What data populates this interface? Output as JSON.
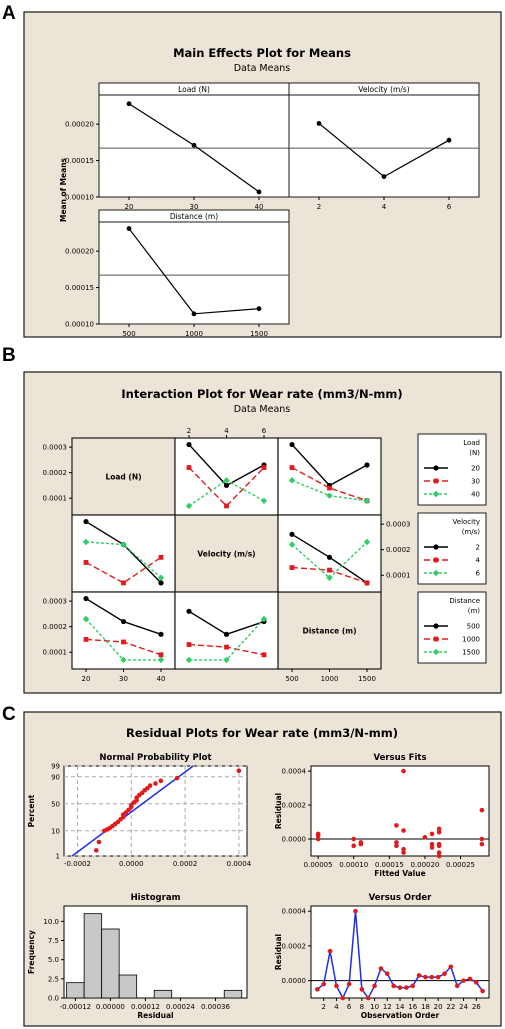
{
  "colors": {
    "panel_bg": "#ede4d8",
    "frame": "#1a1a1a",
    "black": "#000000",
    "red": "#e11b1b",
    "green": "#33cc66",
    "blue": "#1b2fe8",
    "hist": "#c8c8c8"
  },
  "panel_a": {
    "letter": "A",
    "title": "Main Effects Plot for Means",
    "subtitle": "Data Means",
    "ylabel": "Mean of Means",
    "yticks": [
      "0.00020",
      "0.00015",
      "0.00010"
    ]
  },
  "panel_b": {
    "letter": "B",
    "title": "Interaction Plot for Wear rate (mm3/N-mm)",
    "subtitle": "Data Means",
    "diag": [
      "Load (N)",
      "Velocity (m/s)",
      "Distance (m)"
    ],
    "top_ticks": [
      "2",
      "4",
      "6"
    ],
    "left_ticks": [
      "0.0003",
      "0.0002",
      "0.0001"
    ],
    "right_ticks": [
      "0.0003",
      "0.0002",
      "0.0001"
    ],
    "bottom_ticks_load": [
      "20",
      "30",
      "40"
    ],
    "bottom_ticks_dist": [
      "500",
      "1000",
      "1500"
    ],
    "legends": [
      {
        "title1": "Load",
        "title2": "(N)",
        "items": [
          "20",
          "30",
          "40"
        ]
      },
      {
        "title1": "Velocity",
        "title2": "(m/s)",
        "items": [
          "2",
          "4",
          "6"
        ]
      },
      {
        "title1": "Distance",
        "title2": "(m)",
        "items": [
          "500",
          "1000",
          "1500"
        ]
      }
    ]
  },
  "panel_c": {
    "letter": "C",
    "title": "Residual Plots for Wear rate (mm3/N-mm)",
    "npp": {
      "title": "Normal Probability Plot",
      "ylabel": "Percent",
      "yticks": [
        "99",
        "90",
        "50",
        "10",
        "1"
      ],
      "xticks": [
        "-0.0002",
        "0.0000",
        "0.0002",
        "0.0004"
      ]
    },
    "fits": {
      "title": "Versus Fits",
      "ylabel": "Residual",
      "xlabel": "Fitted Value",
      "yticks": [
        "0.0004",
        "0.0002",
        "0.0000"
      ],
      "xticks": [
        "0.00005",
        "0.00010",
        "0.00015",
        "0.00020",
        "0.00025"
      ]
    },
    "hist": {
      "title": "Histogram",
      "ylabel": "Frequency",
      "xlabel": "Residual",
      "yticks": [
        "10.0",
        "7.5",
        "5.0",
        "2.5",
        "0.0"
      ],
      "xticks": [
        "-0.00012",
        "0.00000",
        "0.00012",
        "0.00024",
        "0.00036"
      ]
    },
    "order": {
      "title": "Versus Order",
      "ylabel": "Residual",
      "xlabel": "Observation Order",
      "yticks": [
        "0.0004",
        "0.0002",
        "0.0000"
      ],
      "xticks": [
        "2",
        "4",
        "6",
        "8",
        "10",
        "12",
        "14",
        "16",
        "18",
        "20",
        "22",
        "24",
        "26"
      ]
    }
  },
  "chart_data": [
    {
      "type": "line",
      "title": "Main Effects Plot for Means",
      "subtitle": "Data Means",
      "ylabel": "Mean of Means",
      "ylim": [
        0.0001,
        0.00024
      ],
      "overall_mean": 0.000167,
      "panels": [
        {
          "name": "Load (N)",
          "x": [
            "20",
            "30",
            "40"
          ],
          "values": [
            0.000228,
            0.000171,
            0.000107
          ]
        },
        {
          "name": "Velocity (m/s)",
          "x": [
            "2",
            "4",
            "6"
          ],
          "values": [
            0.000201,
            0.000128,
            0.000178
          ]
        },
        {
          "name": "Distance (m)",
          "x": [
            "500",
            "1000",
            "1500"
          ],
          "values": [
            0.000231,
            0.000114,
            0.000121
          ]
        }
      ]
    },
    {
      "type": "line",
      "title": "Interaction Plot for Wear rate (mm3/N-mm)",
      "subtitle": "Data Means",
      "ylim": [
        5e-05,
        0.00032
      ],
      "cells": [
        {
          "x_factor": "Velocity (m/s)",
          "x": [
            "2",
            "4",
            "6"
          ],
          "series_factor": "Load (N)",
          "series": [
            {
              "name": "20",
              "values": [
                0.00031,
                0.00015,
                0.00023
              ]
            },
            {
              "name": "30",
              "values": [
                0.00022,
                7e-05,
                0.00022
              ]
            },
            {
              "name": "40",
              "values": [
                7e-05,
                0.00017,
                9e-05
              ]
            }
          ]
        },
        {
          "x_factor": "Distance (m)",
          "x": [
            "500",
            "1000",
            "1500"
          ],
          "series_factor": "Load (N)",
          "series": [
            {
              "name": "20",
              "values": [
                0.00031,
                0.00015,
                0.00023
              ]
            },
            {
              "name": "30",
              "values": [
                0.00022,
                0.00014,
                9e-05
              ]
            },
            {
              "name": "40",
              "values": [
                0.00017,
                0.00011,
                9e-05
              ]
            }
          ]
        },
        {
          "x_factor": "Load (N)",
          "x": [
            "20",
            "30",
            "40"
          ],
          "series_factor": "Velocity (m/s)",
          "series": [
            {
              "name": "2",
              "values": [
                0.00031,
                0.00022,
                7e-05
              ]
            },
            {
              "name": "4",
              "values": [
                0.00015,
                7e-05,
                0.00017
              ]
            },
            {
              "name": "6",
              "values": [
                0.00023,
                0.00022,
                9e-05
              ]
            }
          ]
        },
        {
          "x_factor": "Distance (m)",
          "x": [
            "500",
            "1000",
            "1500"
          ],
          "series_factor": "Velocity (m/s)",
          "series": [
            {
              "name": "2",
              "values": [
                0.00026,
                0.00017,
                7e-05
              ]
            },
            {
              "name": "4",
              "values": [
                0.00013,
                0.00012,
                7e-05
              ]
            },
            {
              "name": "6",
              "values": [
                0.00022,
                9e-05,
                0.00023
              ]
            }
          ]
        },
        {
          "x_factor": "Load (N)",
          "x": [
            "20",
            "30",
            "40"
          ],
          "series_factor": "Distance (m)",
          "series": [
            {
              "name": "500",
              "values": [
                0.00031,
                0.00022,
                0.00017
              ]
            },
            {
              "name": "1000",
              "values": [
                0.00015,
                0.00014,
                9e-05
              ]
            },
            {
              "name": "1500",
              "values": [
                0.00023,
                7e-05,
                7e-05
              ]
            }
          ]
        },
        {
          "x_factor": "Velocity (m/s)",
          "x": [
            "2",
            "4",
            "6"
          ],
          "series_factor": "Distance (m)",
          "series": [
            {
              "name": "500",
              "values": [
                0.00026,
                0.00017,
                0.00022
              ]
            },
            {
              "name": "1000",
              "values": [
                0.00013,
                0.00012,
                9e-05
              ]
            },
            {
              "name": "1500",
              "values": [
                7e-05,
                7e-05,
                0.00023
              ]
            }
          ]
        }
      ]
    },
    {
      "type": "scatter",
      "title": "Normal Probability Plot",
      "xlim": [
        -0.00025,
        0.00043
      ],
      "xlabel": "",
      "ylabel": "Percent",
      "fit_line": [
        [
          -0.00022,
          1
        ],
        [
          0.00023,
          99
        ]
      ],
      "points": [
        [
          -0.00013,
          3
        ],
        [
          -0.00012,
          6
        ],
        [
          -0.0001,
          10
        ],
        [
          -9e-05,
          12
        ],
        [
          -8e-05,
          14
        ],
        [
          -7e-05,
          17
        ],
        [
          -6e-05,
          20
        ],
        [
          -5e-05,
          23
        ],
        [
          -4e-05,
          27
        ],
        [
          -3e-05,
          30
        ],
        [
          -3e-05,
          34
        ],
        [
          -2e-05,
          37
        ],
        [
          -1e-05,
          41
        ],
        [
          0.0,
          45
        ],
        [
          0.0,
          48
        ],
        [
          1e-05,
          52
        ],
        [
          2e-05,
          55
        ],
        [
          2e-05,
          59
        ],
        [
          3e-05,
          63
        ],
        [
          4e-05,
          66
        ],
        [
          5e-05,
          70
        ],
        [
          6e-05,
          73
        ],
        [
          7e-05,
          77
        ],
        [
          9e-05,
          80
        ],
        [
          0.00011,
          84
        ],
        [
          0.00017,
          88
        ],
        [
          0.0004,
          95
        ]
      ]
    },
    {
      "type": "scatter",
      "title": "Versus Fits",
      "xlabel": "Fitted Value",
      "ylabel": "Residual",
      "xlim": [
        4e-05,
        0.00029
      ],
      "ylim": [
        -0.0001,
        0.00043
      ],
      "points": [
        [
          5e-05,
          2e-05
        ],
        [
          5e-05,
          3e-05
        ],
        [
          0.0001,
          0.0
        ],
        [
          0.0001,
          -4e-05
        ],
        [
          0.00011,
          -3e-05
        ],
        [
          0.00011,
          -2e-05
        ],
        [
          0.00016,
          8e-05
        ],
        [
          0.00016,
          -2e-05
        ],
        [
          0.00016,
          -4e-05
        ],
        [
          0.00017,
          0.0004
        ],
        [
          0.00017,
          5e-05
        ],
        [
          0.00017,
          -6e-05
        ],
        [
          0.00017,
          -8e-05
        ],
        [
          0.0002,
          1e-05
        ],
        [
          0.00021,
          3e-05
        ],
        [
          0.00021,
          -3e-05
        ],
        [
          0.00021,
          -5e-05
        ],
        [
          0.00022,
          6e-05
        ],
        [
          0.00022,
          4e-05
        ],
        [
          0.00022,
          -3e-05
        ],
        [
          0.00022,
          -4e-05
        ],
        [
          0.00022,
          -8e-05
        ],
        [
          0.00022,
          -0.0001
        ],
        [
          0.00028,
          0.00017
        ],
        [
          0.00028,
          0.0
        ],
        [
          0.00028,
          -3e-05
        ],
        [
          5e-05,
          0.0
        ]
      ]
    },
    {
      "type": "bar",
      "title": "Histogram",
      "xlabel": "Residual",
      "ylabel": "Frequency",
      "bin_width": 6e-05,
      "bin_left": -0.00015,
      "values": [
        2,
        11,
        9,
        3,
        0,
        1,
        0,
        0,
        0,
        1
      ],
      "ylim": [
        0,
        12
      ]
    },
    {
      "type": "line",
      "title": "Versus Order",
      "xlabel": "Observation Order",
      "ylabel": "Residual",
      "ylim": [
        -0.0001,
        0.00043
      ],
      "x": [
        1,
        2,
        3,
        4,
        5,
        6,
        7,
        8,
        9,
        10,
        11,
        12,
        13,
        14,
        15,
        16,
        17,
        18,
        19,
        20,
        21,
        22,
        23,
        24,
        25,
        26,
        27
      ],
      "values": [
        -5e-05,
        -2e-05,
        0.00017,
        -3e-05,
        -0.0001,
        -2e-05,
        0.0004,
        -5e-05,
        -0.0001,
        -3e-05,
        7e-05,
        4e-05,
        -3e-05,
        -4e-05,
        -4e-05,
        -3e-05,
        3e-05,
        2e-05,
        2e-05,
        2e-05,
        4e-05,
        8e-05,
        -3e-05,
        0.0,
        1e-05,
        -1e-05,
        -6e-05
      ]
    }
  ]
}
